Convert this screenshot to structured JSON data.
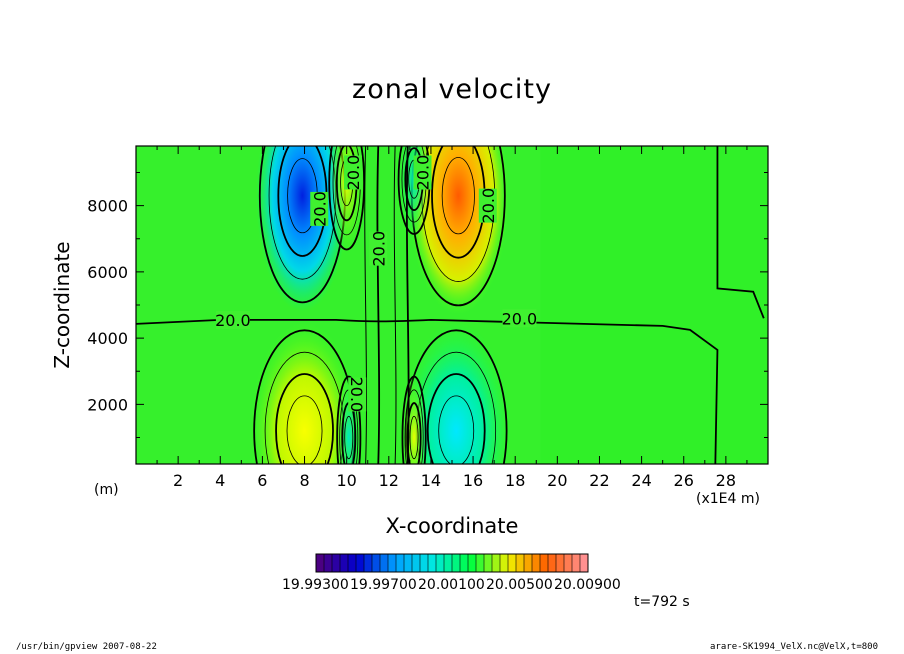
{
  "title": "zonal velocity",
  "chart_data": {
    "type": "heatmap",
    "title": "zonal velocity",
    "xlabel": "X-coordinate",
    "ylabel": "Z-coordinate",
    "x_unit_left": "(m)",
    "x_unit_right": "(x1E4 m)",
    "xlim": [
      0,
      30
    ],
    "ylim": [
      200,
      9800
    ],
    "xticks": [
      2,
      4,
      6,
      8,
      10,
      12,
      14,
      16,
      18,
      20,
      22,
      24,
      26,
      28
    ],
    "yticks": [
      2000,
      4000,
      6000,
      8000
    ],
    "grid": false,
    "contour_labels": [
      "20.0",
      "20.0",
      "20.0",
      "20.0",
      "20.0",
      "20.0",
      "20.0",
      "20.0"
    ],
    "colorbar": {
      "min": 19.993,
      "max": 20.009,
      "labels": [
        "19.99300",
        "19.99700",
        "20.00100",
        "20.00500",
        "20.00900"
      ],
      "colors": [
        "#4b0082",
        "#0000d0",
        "#00a0ff",
        "#00e8e0",
        "#00ff40",
        "#f0f000",
        "#ff6000",
        "#ff9090"
      ]
    }
  },
  "time_label": "t=792 s",
  "footer_left": "/usr/bin/gpview 2007-08-22",
  "footer_right": "arare-SK1994_VelX.nc@VelX,t=800"
}
